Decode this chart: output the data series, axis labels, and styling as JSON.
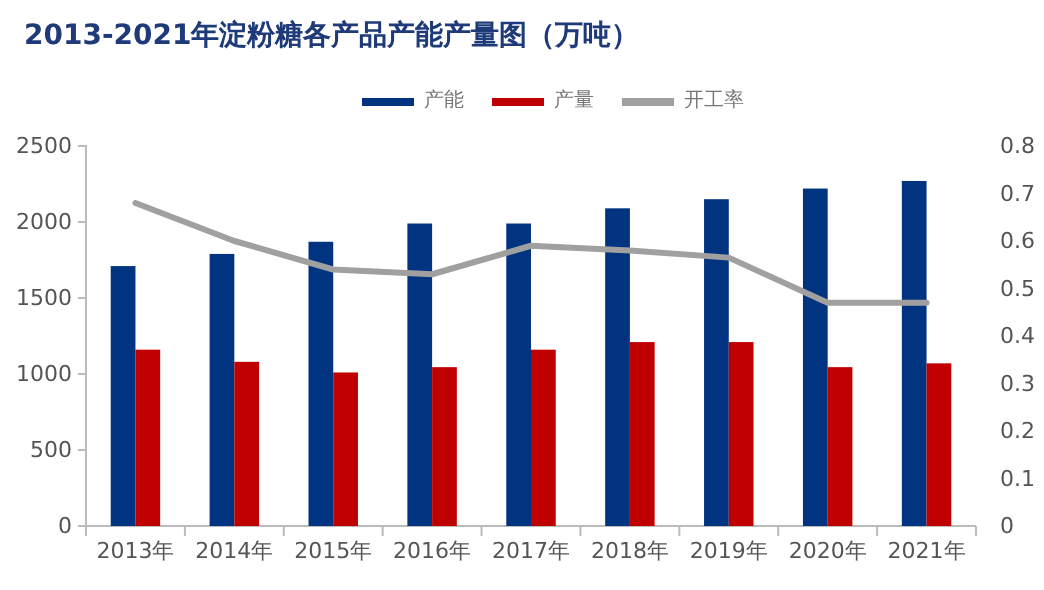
{
  "chart_data": {
    "type": "bar",
    "title": "2013-2021年淀粉糖各产品产能产量图（万吨）",
    "categories": [
      "2013年",
      "2014年",
      "2015年",
      "2016年",
      "2017年",
      "2018年",
      "2019年",
      "2020年",
      "2021年"
    ],
    "series": [
      {
        "name": "产能",
        "color": "#003380",
        "values": [
          1710,
          1790,
          1870,
          1990,
          1990,
          2090,
          2150,
          2220,
          2270
        ]
      },
      {
        "name": "产量",
        "color": "#c00000",
        "values": [
          1160,
          1080,
          1010,
          1045,
          1160,
          1210,
          1210,
          1045,
          1070
        ]
      },
      {
        "name": "开工率",
        "type": "line",
        "axis": "y2",
        "color": "#a0a0a0",
        "values": [
          0.68,
          0.6,
          0.54,
          0.53,
          0.59,
          0.58,
          0.565,
          0.47,
          0.47
        ]
      }
    ],
    "ylim": [
      0,
      2500
    ],
    "yticks": [
      0,
      500,
      1000,
      1500,
      2000,
      2500
    ],
    "y2lim": [
      0,
      0.8
    ],
    "y2ticks": [
      0,
      0.1,
      0.2,
      0.3,
      0.4,
      0.5,
      0.6,
      0.7,
      0.8
    ],
    "legend": "top",
    "grid": false
  }
}
